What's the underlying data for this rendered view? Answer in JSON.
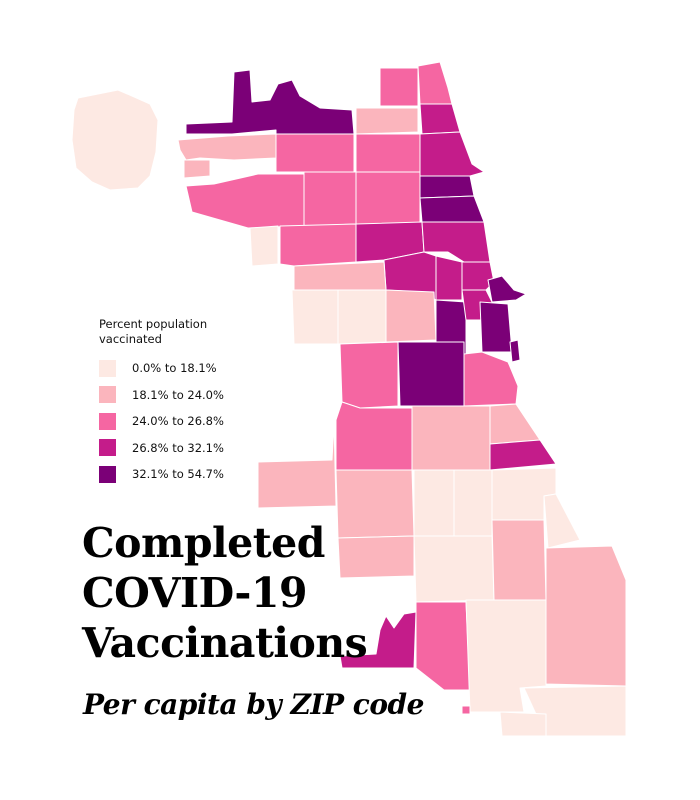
{
  "map": {
    "legend": {
      "title": "Percent population vaccinated",
      "classes": [
        {
          "label": "0.0% to 18.1%",
          "color": "#fde9e3"
        },
        {
          "label": "18.1% to 24.0%",
          "color": "#fbb5bd"
        },
        {
          "label": "24.0% to 26.8%",
          "color": "#f566a2"
        },
        {
          "label": "26.8% to 32.1%",
          "color": "#c41c8a"
        },
        {
          "label": "32.1% to 54.7%",
          "color": "#7b0077"
        }
      ]
    },
    "title_lines": [
      "Completed",
      "COVID-19",
      "Vaccinations"
    ],
    "subtitle": "Per capita by ZIP code"
  }
}
